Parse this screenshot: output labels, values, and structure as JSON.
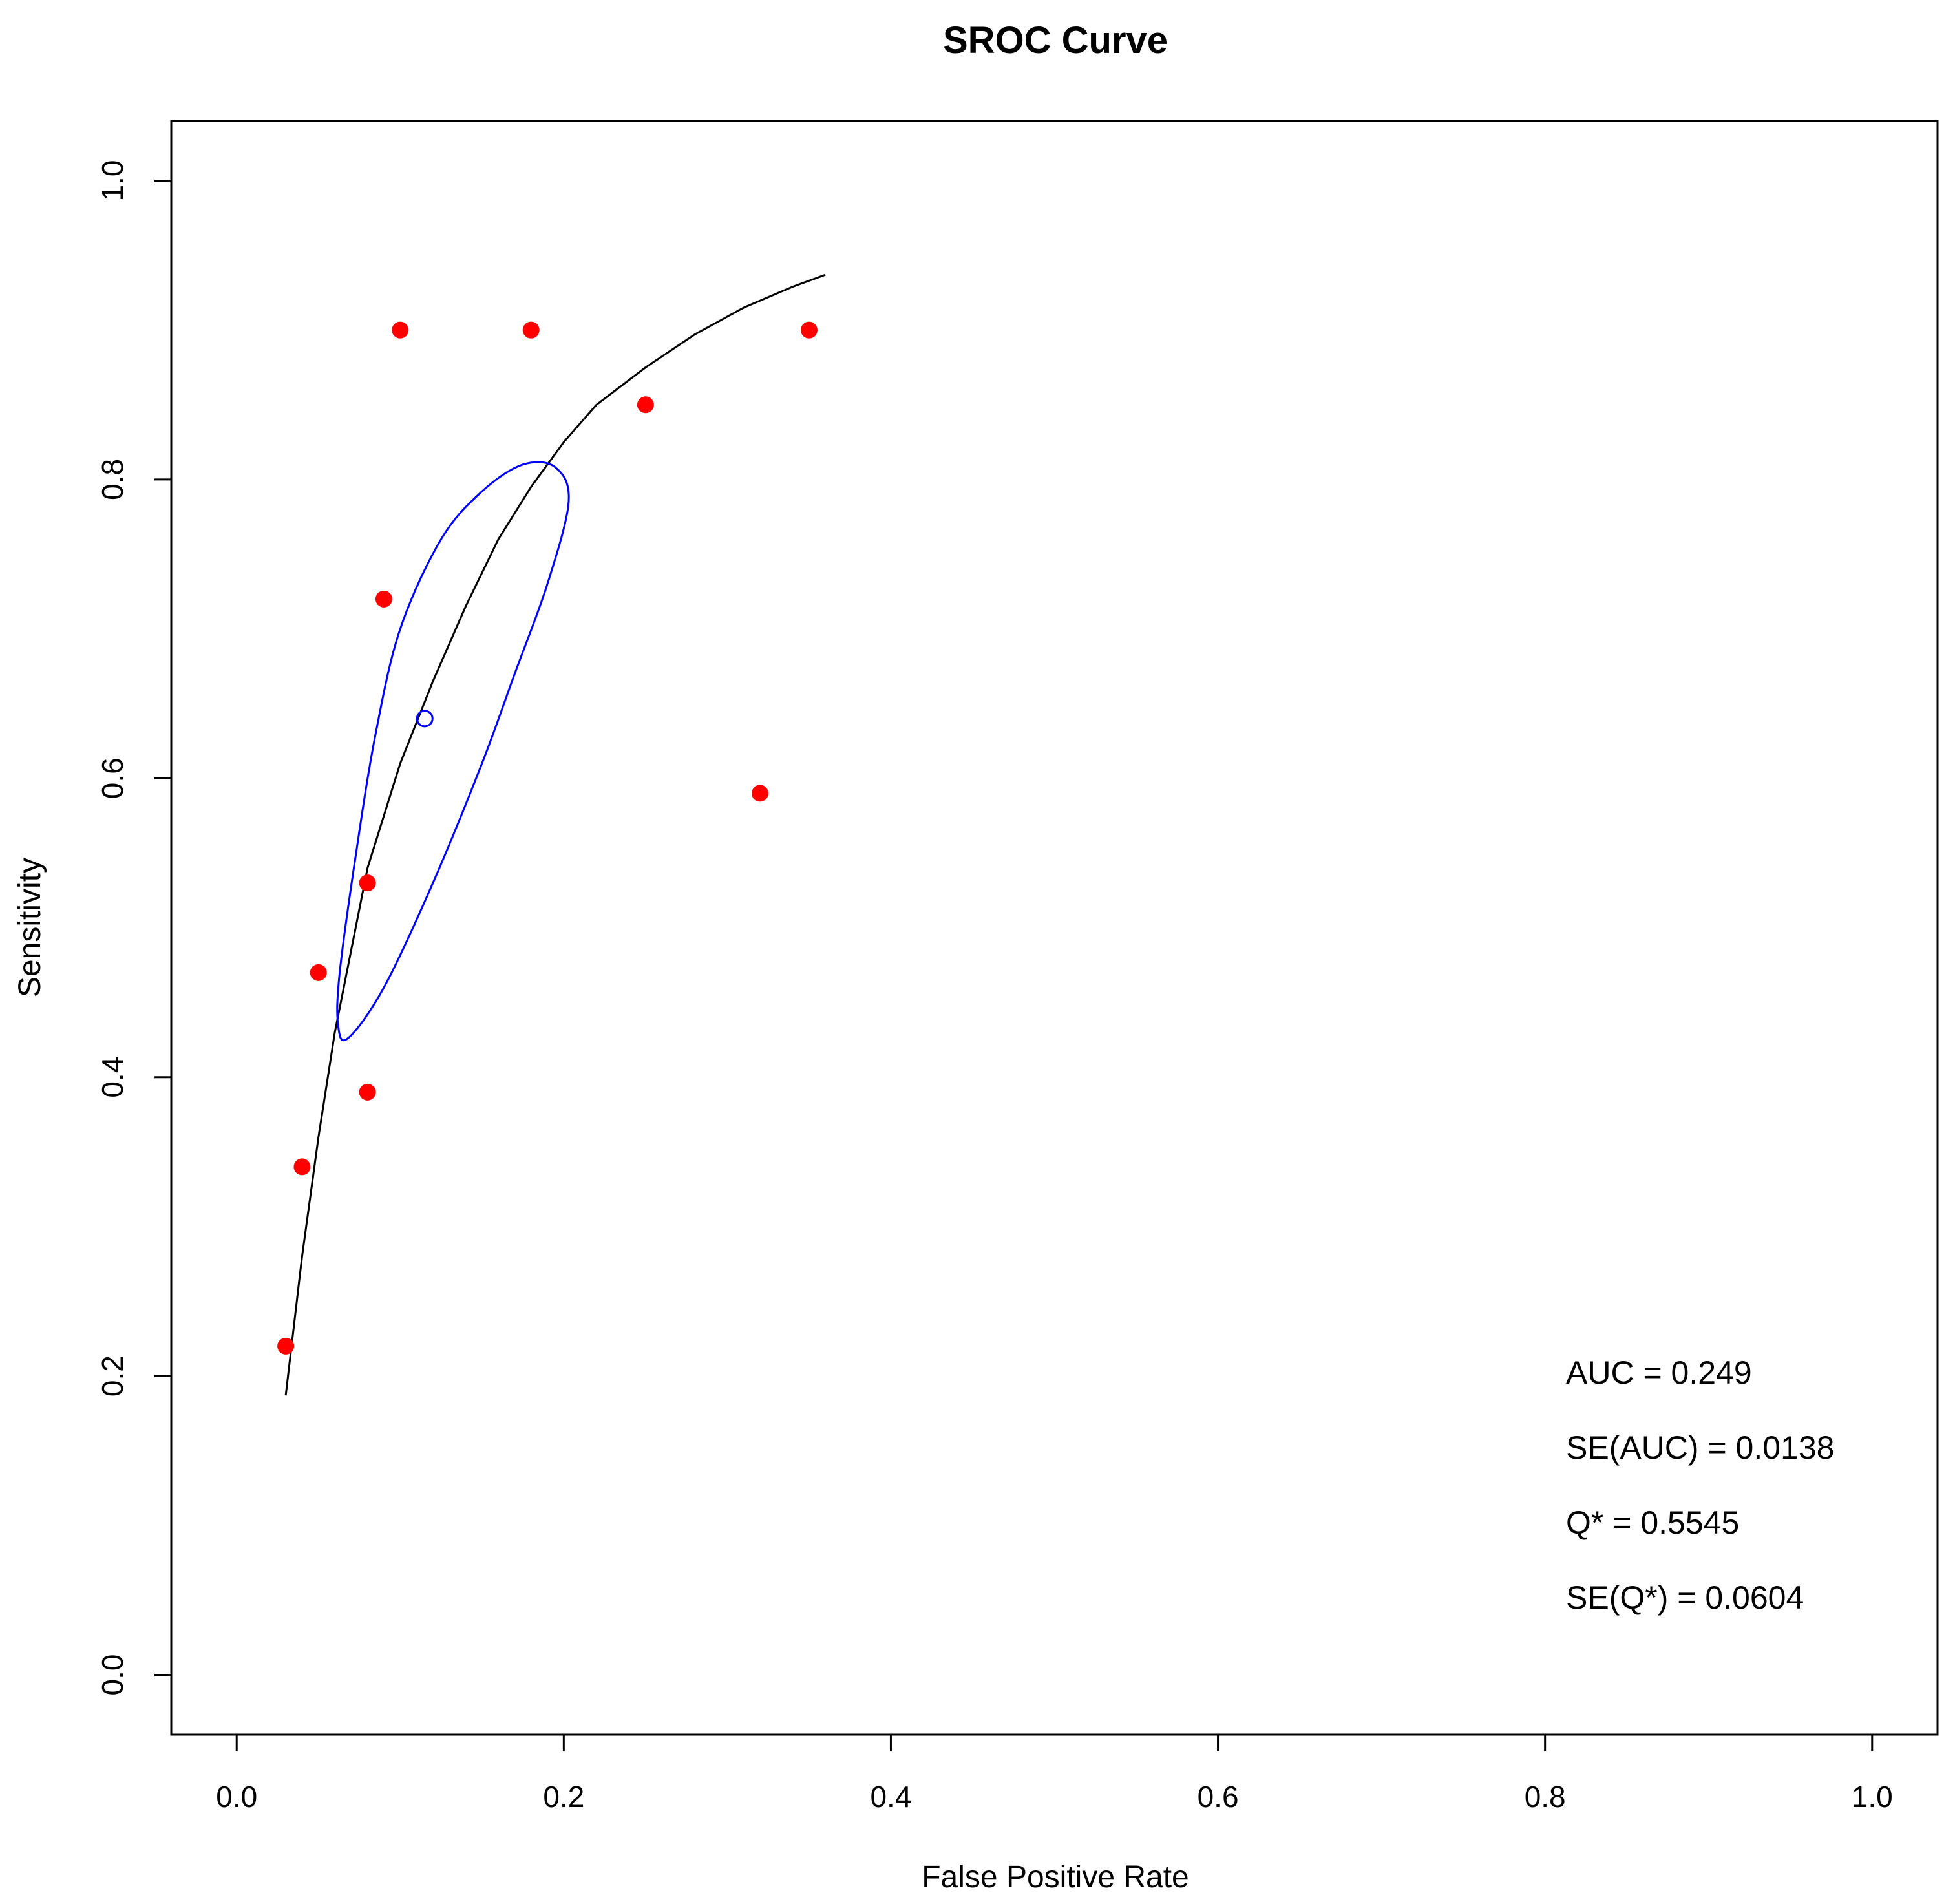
{
  "chart_data": {
    "type": "scatter",
    "title": "SROC Curve",
    "xlabel": "False Positive Rate",
    "ylabel": "Sensitivity",
    "xlim": [
      -0.04,
      1.04
    ],
    "ylim": [
      -0.04,
      1.04
    ],
    "xticks": [
      0,
      0.2,
      0.4,
      0.6,
      0.8,
      1
    ],
    "yticks": [
      0,
      0.2,
      0.4,
      0.6,
      0.8,
      1
    ],
    "xtick_labels": [
      "0.0",
      "0.2",
      "0.4",
      "0.6",
      "0.8",
      "1.0"
    ],
    "ytick_labels": [
      "0.0",
      "0.2",
      "0.4",
      "0.6",
      "0.8",
      "1.0"
    ],
    "grid": false,
    "colors": {
      "points": "#ff0000",
      "curve": "#000000",
      "ellipse": "#0000ff",
      "summary": "#0000ff"
    },
    "points": [
      {
        "x": 0.03,
        "y": 0.22
      },
      {
        "x": 0.04,
        "y": 0.34
      },
      {
        "x": 0.05,
        "y": 0.47
      },
      {
        "x": 0.08,
        "y": 0.39
      },
      {
        "x": 0.08,
        "y": 0.53
      },
      {
        "x": 0.09,
        "y": 0.72
      },
      {
        "x": 0.1,
        "y": 0.9
      },
      {
        "x": 0.18,
        "y": 0.9
      },
      {
        "x": 0.25,
        "y": 0.85
      },
      {
        "x": 0.32,
        "y": 0.59
      },
      {
        "x": 0.35,
        "y": 0.9
      }
    ],
    "sroc_curve": [
      {
        "x": 0.03,
        "y": 0.187
      },
      {
        "x": 0.04,
        "y": 0.28
      },
      {
        "x": 0.05,
        "y": 0.36
      },
      {
        "x": 0.06,
        "y": 0.43
      },
      {
        "x": 0.08,
        "y": 0.54
      },
      {
        "x": 0.1,
        "y": 0.61
      },
      {
        "x": 0.12,
        "y": 0.665
      },
      {
        "x": 0.14,
        "y": 0.715
      },
      {
        "x": 0.16,
        "y": 0.76
      },
      {
        "x": 0.18,
        "y": 0.795
      },
      {
        "x": 0.2,
        "y": 0.825
      },
      {
        "x": 0.22,
        "y": 0.85
      },
      {
        "x": 0.25,
        "y": 0.875
      },
      {
        "x": 0.28,
        "y": 0.897
      },
      {
        "x": 0.31,
        "y": 0.915
      },
      {
        "x": 0.34,
        "y": 0.929
      },
      {
        "x": 0.36,
        "y": 0.937
      }
    ],
    "summary_point": {
      "x": 0.115,
      "y": 0.64
    },
    "confidence_region": [
      {
        "x": 0.068,
        "y": 0.426
      },
      {
        "x": 0.09,
        "y": 0.46
      },
      {
        "x": 0.12,
        "y": 0.53
      },
      {
        "x": 0.15,
        "y": 0.61
      },
      {
        "x": 0.17,
        "y": 0.67
      },
      {
        "x": 0.19,
        "y": 0.73
      },
      {
        "x": 0.203,
        "y": 0.785
      },
      {
        "x": 0.195,
        "y": 0.808
      },
      {
        "x": 0.175,
        "y": 0.81
      },
      {
        "x": 0.15,
        "y": 0.792
      },
      {
        "x": 0.125,
        "y": 0.76
      },
      {
        "x": 0.1,
        "y": 0.7
      },
      {
        "x": 0.085,
        "y": 0.63
      },
      {
        "x": 0.073,
        "y": 0.55
      },
      {
        "x": 0.063,
        "y": 0.47
      },
      {
        "x": 0.062,
        "y": 0.435
      }
    ],
    "annotations": [
      "AUC = 0.249",
      "SE(AUC) = 0.0138",
      "Q* = 0.5545",
      "SE(Q*) = 0.0604"
    ]
  }
}
